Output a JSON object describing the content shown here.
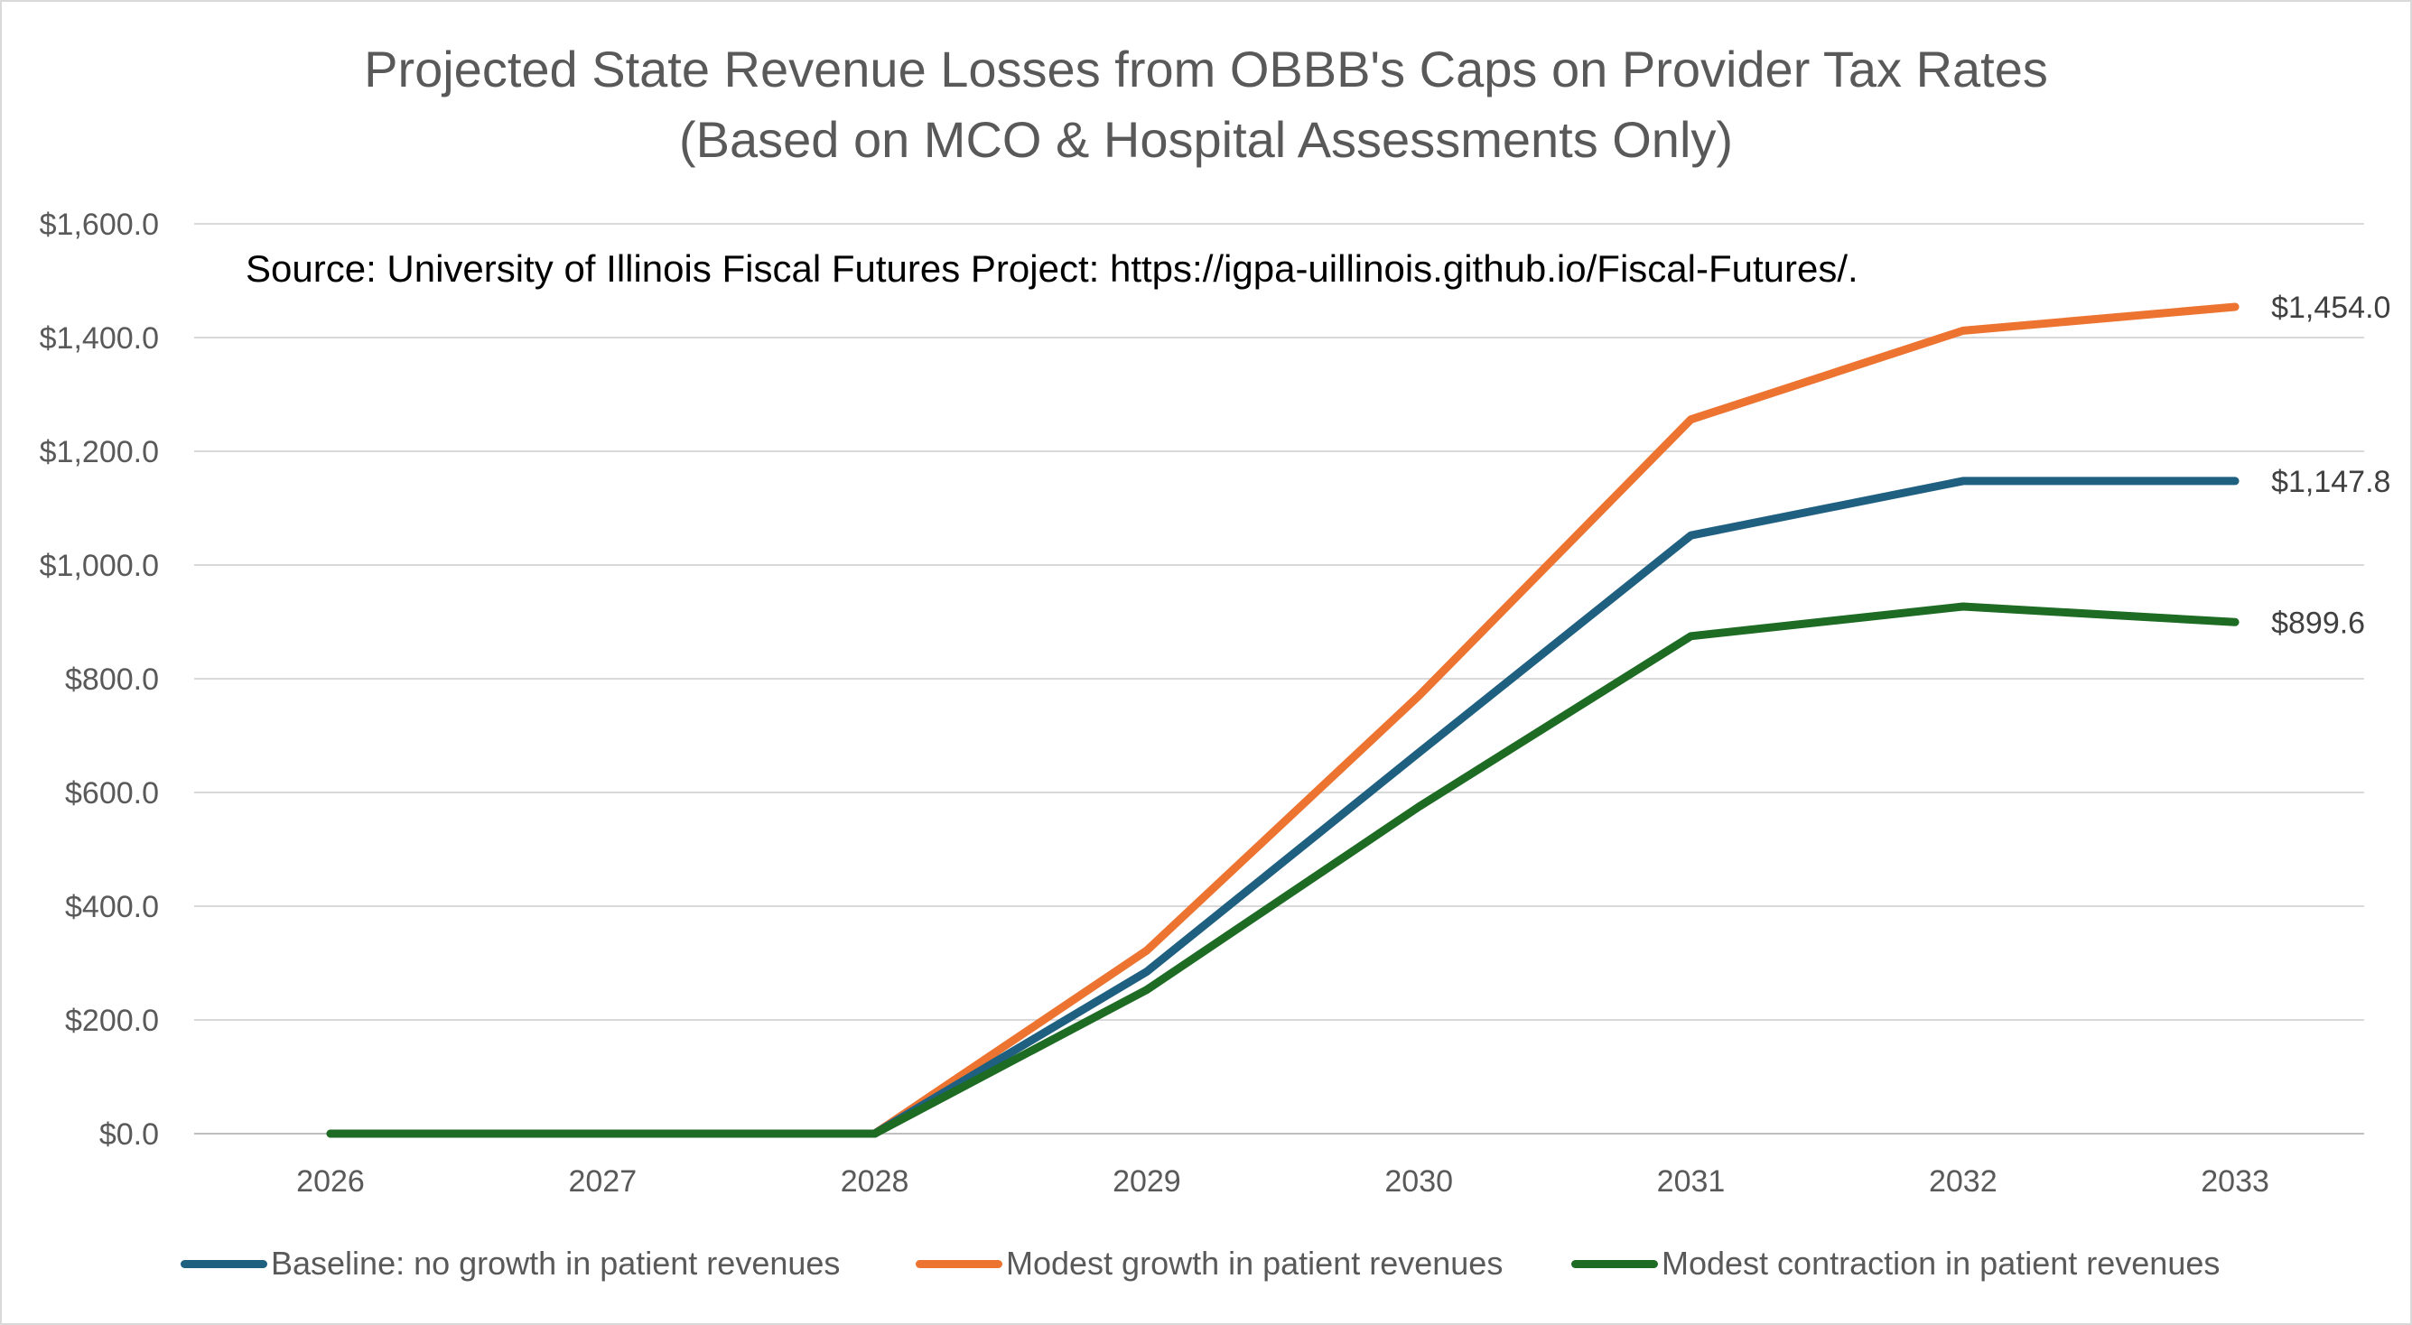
{
  "chart_data": {
    "type": "line",
    "title": "Projected State Revenue Losses from OBBB's Caps on Provider Tax Rates",
    "subtitle": "(Based on MCO & Hospital Assessments Only)",
    "annotation": "Source:  University of Illinois Fiscal Futures Project:  https://igpa-uillinois.github.io/Fiscal-Futures/.",
    "x": [
      "2026",
      "2027",
      "2028",
      "2029",
      "2030",
      "2031",
      "2032",
      "2033"
    ],
    "y_ticks": [
      "$0.0",
      "$200.0",
      "$400.0",
      "$600.0",
      "$800.0",
      "$1,000.0",
      "$1,200.0",
      "$1,400.0",
      "$1,600.0"
    ],
    "ylim": [
      0,
      1600
    ],
    "grid": true,
    "legend_position": "bottom",
    "series": [
      {
        "name": "Baseline:  no growth in patient revenues",
        "color": "#1f5f80",
        "values": [
          0,
          0,
          0,
          285,
          670,
          1052,
          1147.8,
          1147.8
        ],
        "end_label": "$1,147.8"
      },
      {
        "name": "Modest growth in patient revenues",
        "color": "#ed7330",
        "values": [
          0,
          0,
          0,
          322,
          770,
          1256,
          1412,
          1454.0
        ],
        "end_label": "$1,454.0"
      },
      {
        "name": "Modest contraction in patient revenues",
        "color": "#1e6b24",
        "values": [
          0,
          0,
          0,
          253,
          575,
          875,
          927,
          899.6
        ],
        "end_label": "$899.6"
      }
    ]
  }
}
